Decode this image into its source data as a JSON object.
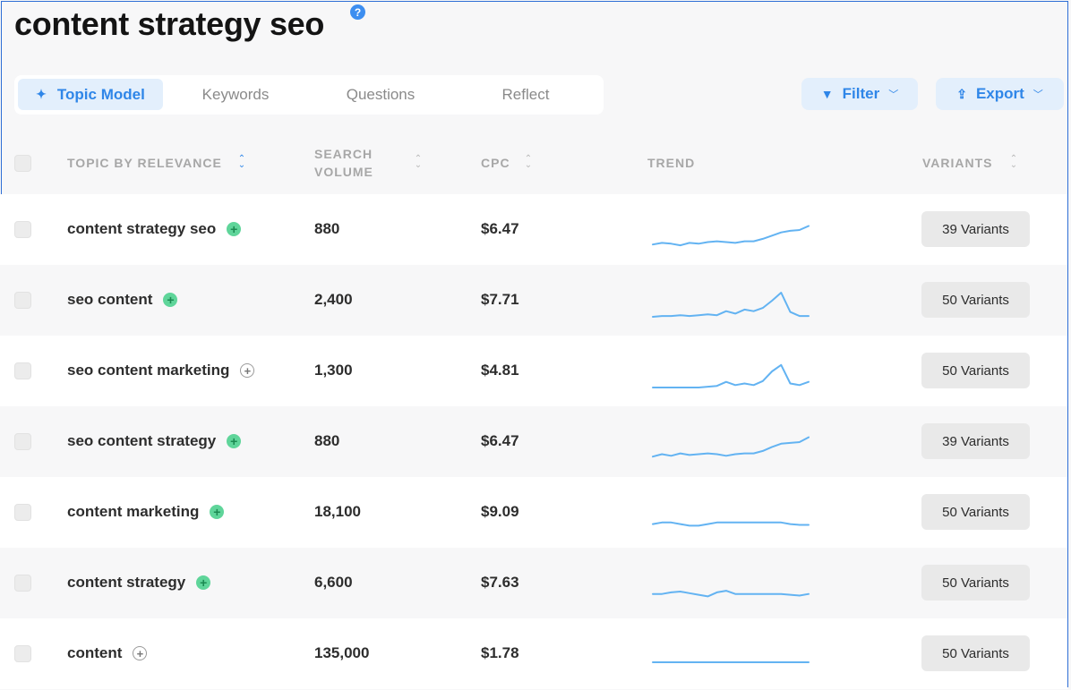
{
  "page": {
    "title": "content strategy seo",
    "help_icon": "?"
  },
  "tabs": [
    {
      "label": "Topic Model",
      "active": true,
      "icon": "sparkle-icon"
    },
    {
      "label": "Keywords",
      "active": false
    },
    {
      "label": "Questions",
      "active": false
    },
    {
      "label": "Reflect",
      "active": false
    }
  ],
  "toolbar": {
    "filter_label": "Filter",
    "export_label": "Export"
  },
  "table": {
    "headers": {
      "topic": "TOPIC BY RELEVANCE",
      "volume_line1": "SEARCH",
      "volume_line2": "VOLUME",
      "cpc": "CPC",
      "trend": "TREND",
      "variants": "VARIANTS"
    },
    "rows": [
      {
        "topic": "content strategy seo",
        "added": true,
        "volume": "880",
        "cpc": "$6.47",
        "variants": "39 Variants",
        "trend": [
          0.1,
          0.2,
          0.15,
          0.05,
          0.2,
          0.15,
          0.25,
          0.3,
          0.25,
          0.2,
          0.3,
          0.3,
          0.45,
          0.65,
          0.85,
          0.95,
          1.0,
          1.25
        ]
      },
      {
        "topic": "seo content",
        "added": true,
        "volume": "2,400",
        "cpc": "$7.71",
        "variants": "50 Variants",
        "trend": [
          0.0,
          0.05,
          0.05,
          0.1,
          0.05,
          0.1,
          0.15,
          0.1,
          0.35,
          0.2,
          0.45,
          0.35,
          0.55,
          1.0,
          1.5,
          0.3,
          0.05,
          0.05
        ]
      },
      {
        "topic": "seo content marketing",
        "added": false,
        "volume": "1,300",
        "cpc": "$4.81",
        "variants": "50 Variants",
        "trend": [
          0.0,
          0.0,
          0.0,
          0.0,
          0.0,
          0.0,
          0.05,
          0.1,
          0.35,
          0.15,
          0.25,
          0.15,
          0.4,
          1.0,
          1.4,
          0.25,
          0.15,
          0.35
        ]
      },
      {
        "topic": "seo content strategy",
        "added": true,
        "volume": "880",
        "cpc": "$6.47",
        "variants": "39 Variants",
        "trend": [
          0.1,
          0.25,
          0.15,
          0.3,
          0.2,
          0.25,
          0.3,
          0.25,
          0.15,
          0.25,
          0.3,
          0.3,
          0.45,
          0.7,
          0.9,
          0.95,
          1.0,
          1.3
        ]
      },
      {
        "topic": "content marketing",
        "added": true,
        "volume": "18,100",
        "cpc": "$9.09",
        "variants": "50 Variants",
        "trend": [
          0.3,
          0.4,
          0.4,
          0.3,
          0.2,
          0.2,
          0.3,
          0.4,
          0.4,
          0.4,
          0.4,
          0.4,
          0.4,
          0.4,
          0.4,
          0.3,
          0.25,
          0.25
        ]
      },
      {
        "topic": "content strategy",
        "added": true,
        "volume": "6,600",
        "cpc": "$7.63",
        "variants": "50 Variants",
        "trend": [
          0.35,
          0.35,
          0.45,
          0.5,
          0.4,
          0.3,
          0.2,
          0.45,
          0.55,
          0.35,
          0.35,
          0.35,
          0.35,
          0.35,
          0.35,
          0.3,
          0.25,
          0.35
        ]
      },
      {
        "topic": "content",
        "added": false,
        "volume": "135,000",
        "cpc": "$1.78",
        "variants": "50 Variants",
        "trend": [
          0.5,
          0.5,
          0.5,
          0.5,
          0.5,
          0.5,
          0.5,
          0.5,
          0.5,
          0.5,
          0.5,
          0.5,
          0.5,
          0.5,
          0.5,
          0.5,
          0.5,
          0.5
        ]
      }
    ]
  },
  "colors": {
    "accent": "#2f86e8",
    "accent_bg": "#e3effc",
    "sparkline": "#63b3f2",
    "added_badge": "#5fd59a"
  }
}
